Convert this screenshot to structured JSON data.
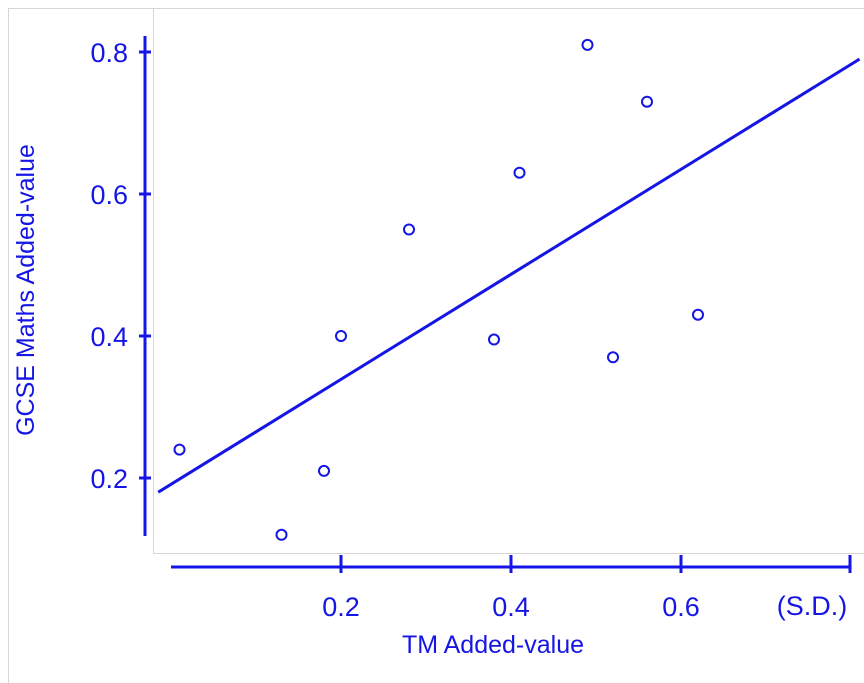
{
  "chart_data": {
    "type": "scatter",
    "xlabel": "TM Added-value",
    "ylabel": "GCSE Maths Added-value",
    "x_unit": "(S.D.)",
    "xlim": [
      0.0,
      0.81
    ],
    "ylim": [
      0.1,
      0.82
    ],
    "x_ticks": [
      "0.2",
      "0.4",
      "0.6"
    ],
    "y_ticks": [
      "0.2",
      "0.4",
      "0.6",
      "0.8"
    ],
    "grid": false,
    "color": "#1515e6",
    "points": [
      {
        "x": 0.01,
        "y": 0.24
      },
      {
        "x": 0.13,
        "y": 0.12
      },
      {
        "x": 0.18,
        "y": 0.21
      },
      {
        "x": 0.2,
        "y": 0.4
      },
      {
        "x": 0.28,
        "y": 0.55
      },
      {
        "x": 0.38,
        "y": 0.395
      },
      {
        "x": 0.41,
        "y": 0.63
      },
      {
        "x": 0.49,
        "y": 0.81
      },
      {
        "x": 0.52,
        "y": 0.37
      },
      {
        "x": 0.56,
        "y": 0.73
      },
      {
        "x": 0.62,
        "y": 0.43
      }
    ],
    "fit_line": [
      {
        "x": -0.015,
        "y": 0.18
      },
      {
        "x": 0.81,
        "y": 0.79
      }
    ]
  }
}
